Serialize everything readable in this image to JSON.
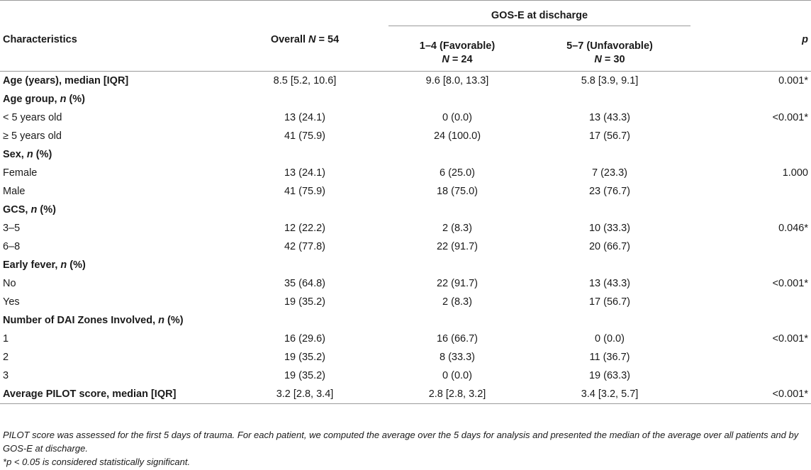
{
  "table": {
    "group_header": "GOS-E at discharge",
    "columns": {
      "characteristics": "Characteristics",
      "overall_prefix": "Overall ",
      "overall_n_symbol": "N",
      "overall_n_value": " = 54",
      "fav_label": "1–4 (Favorable)",
      "fav_n_symbol": "N",
      "fav_n_value": " = 24",
      "unfav_label": "5–7 (Unfavorable)",
      "unfav_n_symbol": "N",
      "unfav_n_value": " = 30",
      "p": "p"
    },
    "rows": [
      {
        "label": "Age (years), median [IQR]",
        "label_italic": "",
        "label_suffix": "",
        "section": true,
        "overall": "8.5 [5.2, 10.6]",
        "fav": "9.6 [8.0, 13.3]",
        "unfav": "5.8 [3.9, 9.1]",
        "p": "0.001*"
      },
      {
        "label": "Age group, ",
        "label_italic": "n",
        "label_suffix": " (%)",
        "section": true,
        "overall": "",
        "fav": "",
        "unfav": "",
        "p": ""
      },
      {
        "label": "< 5 years old",
        "label_italic": "",
        "label_suffix": "",
        "section": false,
        "overall": "13 (24.1)",
        "fav": "0 (0.0)",
        "unfav": "13 (43.3)",
        "p": "<0.001*"
      },
      {
        "label": "≥ 5 years old",
        "label_italic": "",
        "label_suffix": "",
        "section": false,
        "overall": "41 (75.9)",
        "fav": "24 (100.0)",
        "unfav": "17 (56.7)",
        "p": ""
      },
      {
        "label": "Sex, ",
        "label_italic": "n",
        "label_suffix": " (%)",
        "section": true,
        "overall": "",
        "fav": "",
        "unfav": "",
        "p": ""
      },
      {
        "label": "Female",
        "label_italic": "",
        "label_suffix": "",
        "section": false,
        "overall": "13 (24.1)",
        "fav": "6 (25.0)",
        "unfav": "7 (23.3)",
        "p": "1.000"
      },
      {
        "label": "Male",
        "label_italic": "",
        "label_suffix": "",
        "section": false,
        "overall": "41 (75.9)",
        "fav": "18 (75.0)",
        "unfav": "23 (76.7)",
        "p": ""
      },
      {
        "label": "GCS, ",
        "label_italic": "n",
        "label_suffix": " (%)",
        "section": true,
        "overall": "",
        "fav": "",
        "unfav": "",
        "p": ""
      },
      {
        "label": "3–5",
        "label_italic": "",
        "label_suffix": "",
        "section": false,
        "overall": "12 (22.2)",
        "fav": "2 (8.3)",
        "unfav": "10 (33.3)",
        "p": "0.046*"
      },
      {
        "label": "6–8",
        "label_italic": "",
        "label_suffix": "",
        "section": false,
        "overall": "42 (77.8)",
        "fav": "22 (91.7)",
        "unfav": "20 (66.7)",
        "p": ""
      },
      {
        "label": "Early fever, ",
        "label_italic": "n",
        "label_suffix": " (%)",
        "section": true,
        "overall": "",
        "fav": "",
        "unfav": "",
        "p": ""
      },
      {
        "label": "No",
        "label_italic": "",
        "label_suffix": "",
        "section": false,
        "overall": "35 (64.8)",
        "fav": "22 (91.7)",
        "unfav": "13 (43.3)",
        "p": "<0.001*"
      },
      {
        "label": "Yes",
        "label_italic": "",
        "label_suffix": "",
        "section": false,
        "overall": "19 (35.2)",
        "fav": "2 (8.3)",
        "unfav": "17 (56.7)",
        "p": ""
      },
      {
        "label": "Number of DAI Zones Involved, ",
        "label_italic": "n",
        "label_suffix": " (%)",
        "section": true,
        "overall": "",
        "fav": "",
        "unfav": "",
        "p": ""
      },
      {
        "label": "1",
        "label_italic": "",
        "label_suffix": "",
        "section": false,
        "overall": "16 (29.6)",
        "fav": "16 (66.7)",
        "unfav": "0 (0.0)",
        "p": "<0.001*"
      },
      {
        "label": "2",
        "label_italic": "",
        "label_suffix": "",
        "section": false,
        "overall": "19 (35.2)",
        "fav": "8 (33.3)",
        "unfav": "11 (36.7)",
        "p": ""
      },
      {
        "label": "3",
        "label_italic": "",
        "label_suffix": "",
        "section": false,
        "overall": "19 (35.2)",
        "fav": "0 (0.0)",
        "unfav": "19 (63.3)",
        "p": ""
      },
      {
        "label": "Average PILOT score, median [IQR]",
        "label_italic": "",
        "label_suffix": "",
        "section": true,
        "overall": "3.2 [2.8, 3.4]",
        "fav": "2.8 [2.8, 3.2]",
        "unfav": "3.4 [3.2, 5.7]",
        "p": "<0.001*"
      }
    ]
  },
  "footnotes": {
    "note1": "PILOT score was assessed for the first 5 days of trauma. For each patient, we computed the average over the 5 days for analysis and presented the median of the average over all patients and by GOS-E at discharge.",
    "note2_star": "*",
    "note2_p": "p",
    "note2_rest": " < 0.05 is considered statistically significant."
  }
}
